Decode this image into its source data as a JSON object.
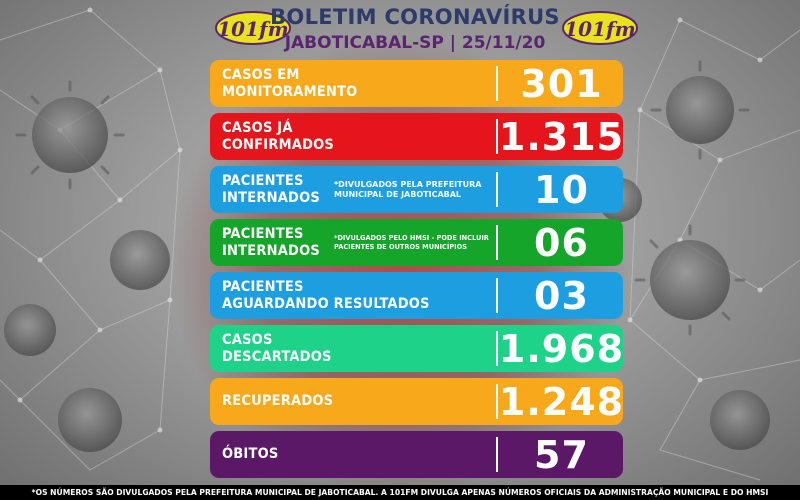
{
  "header": {
    "title": "BOLETIM CORONAVÍRUS",
    "subtitle": "JABOTICABAL-SP | 25/11/20",
    "logo_text": "101fm",
    "logo_icon": "radio-101fm-logo"
  },
  "colors": {
    "orange": "#f7a81b",
    "red": "#e5161b",
    "blue": "#1d9ee0",
    "green": "#15a52a",
    "teal": "#1ed28a",
    "purple": "#5a1866",
    "title": "#2d3a6b",
    "subtitle": "#5a2470"
  },
  "rows": [
    {
      "line1": "CASOS EM",
      "line2": "MONITORAMENTO",
      "note1": "",
      "note2": "",
      "value": "301",
      "color": "#f7a81b"
    },
    {
      "line1": "CASOS JÁ",
      "line2": "CONFIRMADOS",
      "note1": "",
      "note2": "",
      "value": "1.315",
      "color": "#e5161b"
    },
    {
      "line1": "PACIENTES",
      "line2": "INTERNADOS",
      "note1": "*DIVULGADOS PELA PREFEITURA",
      "note2": "MUNICIPAL DE JABOTICABAL",
      "value": "10",
      "color": "#1d9ee0"
    },
    {
      "line1": "PACIENTES",
      "line2": "INTERNADOS",
      "note1": "*DIVULGADOS PELO HMSI - PODE INCLUIR",
      "note2": "PACIENTES DE OUTROS MUNICÍPIOS",
      "value": "06",
      "color": "#15a52a"
    },
    {
      "line1": "PACIENTES",
      "line2": "AGUARDANDO RESULTADOS",
      "note1": "",
      "note2": "",
      "value": "03",
      "color": "#1d9ee0"
    },
    {
      "line1": "CASOS",
      "line2": "DESCARTADOS",
      "note1": "",
      "note2": "",
      "value": "1.968",
      "color": "#1ed28a"
    },
    {
      "line1": "RECUPERADOS",
      "line2": "",
      "note1": "",
      "note2": "",
      "value": "1.248",
      "color": "#f7a81b"
    },
    {
      "line1": "ÓBITOS",
      "line2": "",
      "note1": "",
      "note2": "",
      "value": "57",
      "color": "#5a1866"
    }
  ],
  "footer": {
    "text": "*OS NÚMEROS SÃO DIVULGADOS PELA PREFEITURA MUNICIPAL DE JABOTICABAL. A 101FM DIVULGA APENAS NÚMEROS OFICIAIS DA ADMINISTRAÇÃO MUNICIPAL E DO HMSI"
  }
}
